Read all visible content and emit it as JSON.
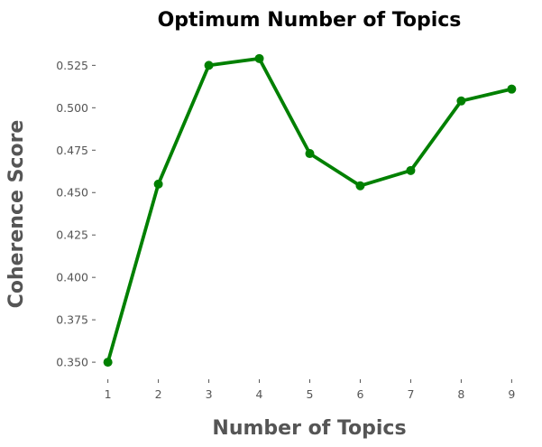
{
  "chart_data": {
    "type": "line",
    "title": "Optimum Number of Topics",
    "xlabel": "Number of Topics",
    "ylabel": "Coherence Score",
    "x": [
      1,
      2,
      3,
      4,
      5,
      6,
      7,
      8,
      9
    ],
    "series": [
      {
        "values": [
          0.35,
          0.455,
          0.525,
          0.529,
          0.473,
          0.454,
          0.463,
          0.504,
          0.511
        ]
      }
    ],
    "x_ticks": [
      "1",
      "2",
      "3",
      "4",
      "5",
      "6",
      "7",
      "8",
      "9"
    ],
    "y_ticks": [
      "0.350",
      "0.375",
      "0.400",
      "0.425",
      "0.450",
      "0.475",
      "0.500",
      "0.525"
    ],
    "xlim": [
      0.81,
      9.19
    ],
    "ylim": [
      0.341,
      0.5385
    ],
    "grid": false,
    "legend": "none",
    "colors": {
      "line": "#008000",
      "marker": "#008000",
      "text": "#555555",
      "title": "#000000"
    }
  }
}
